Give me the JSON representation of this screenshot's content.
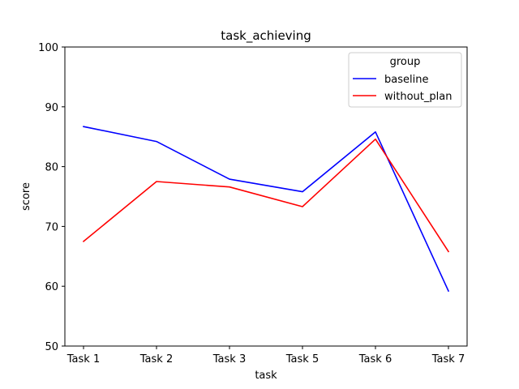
{
  "chart_data": {
    "type": "line",
    "title": "task_achieving",
    "xlabel": "task",
    "ylabel": "score",
    "categories": [
      "Task 1",
      "Task 2",
      "Task 3",
      "Task 5",
      "Task 6",
      "Task 7"
    ],
    "ylim": [
      50,
      100
    ],
    "yticks": [
      50,
      60,
      70,
      80,
      90,
      100
    ],
    "grid": false,
    "legend": {
      "title": "group",
      "placement": "top-right"
    },
    "series": [
      {
        "name": "baseline",
        "color": "#0000ff",
        "values": [
          86.7,
          84.2,
          77.9,
          75.8,
          85.8,
          59.2
        ]
      },
      {
        "name": "without_plan",
        "color": "#ff0000",
        "values": [
          67.5,
          77.5,
          76.6,
          73.3,
          84.6,
          65.8
        ]
      }
    ]
  }
}
